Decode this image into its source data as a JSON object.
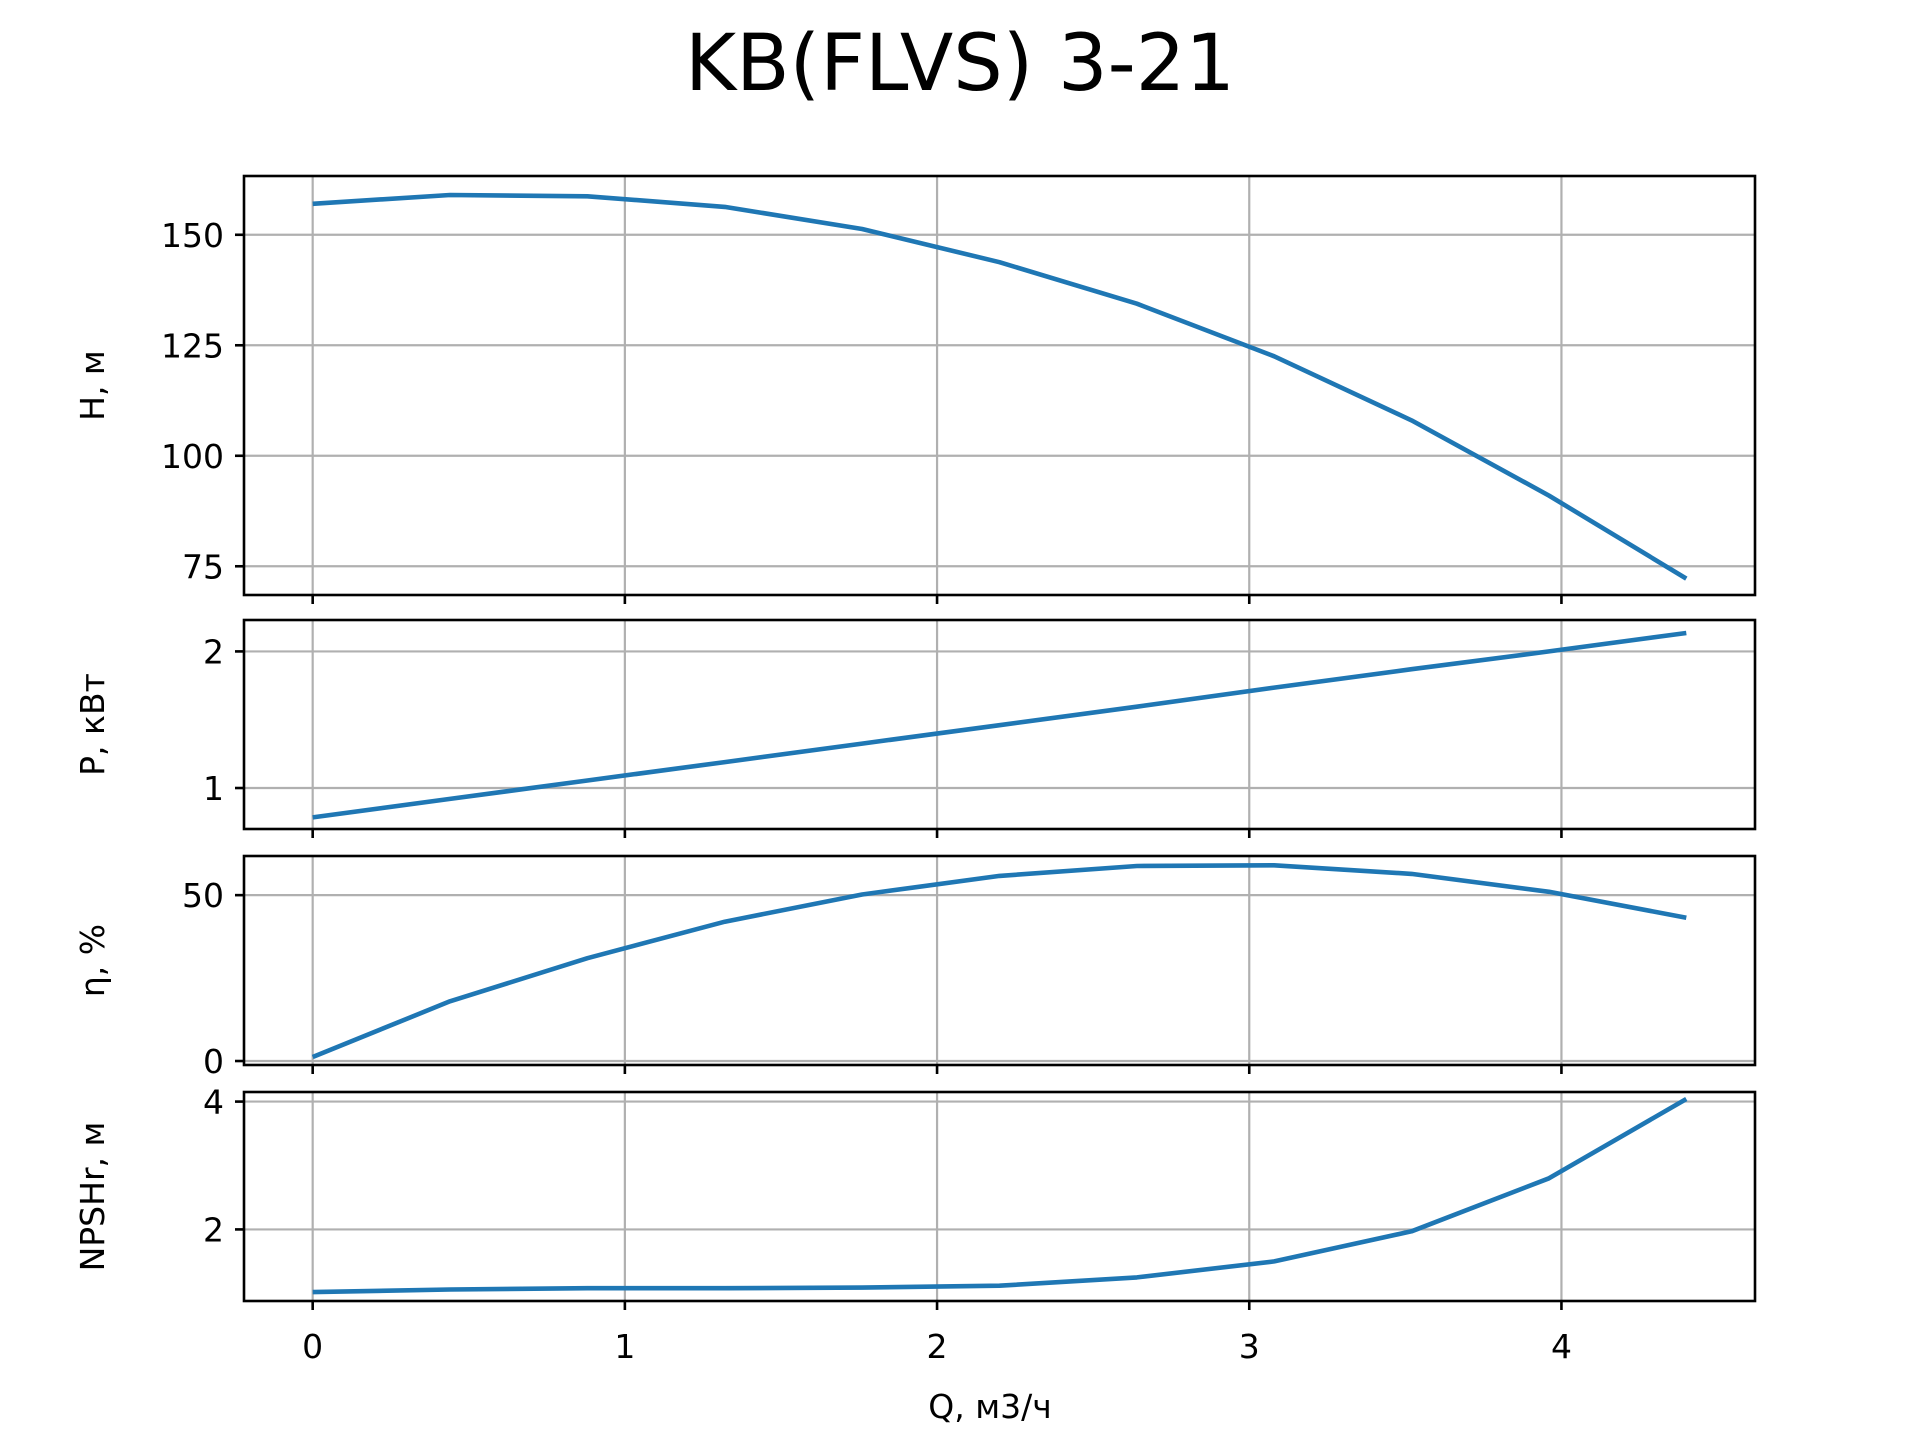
{
  "chart_data": {
    "type": "line",
    "title": "KB(FLVS) 3-21",
    "xlabel": "Q, м3/ч",
    "xlim": [
      -0.22,
      4.62
    ],
    "x_ticks": [
      0,
      1,
      2,
      3,
      4
    ],
    "x_tick_labels": [
      "0",
      "1",
      "2",
      "3",
      "4"
    ],
    "grid": true,
    "color": "#1f77b4",
    "subplots": [
      {
        "ylabel": "H, м",
        "ylim": [
          68.5,
          163.3
        ],
        "y_ticks": [
          75,
          100,
          125,
          150
        ],
        "y_tick_labels": [
          "75",
          "100",
          "125",
          "150"
        ],
        "x": [
          0,
          0.44,
          0.88,
          1.32,
          1.76,
          2.2,
          2.64,
          3.08,
          3.52,
          3.96,
          4.4
        ],
        "y": [
          157,
          159,
          158.7,
          156.3,
          151.3,
          143.8,
          134.4,
          122.5,
          108,
          91,
          72.2
        ]
      },
      {
        "ylabel": "P, кВт",
        "ylim": [
          0.7,
          2.23
        ],
        "y_ticks": [
          1,
          2
        ],
        "y_tick_labels": [
          "1",
          "2"
        ],
        "x": [
          0,
          0.44,
          0.88,
          1.32,
          1.76,
          2.2,
          2.64,
          3.08,
          3.52,
          3.96,
          4.4
        ],
        "y": [
          0.785,
          0.92,
          1.055,
          1.19,
          1.325,
          1.46,
          1.595,
          1.735,
          1.87,
          2.0,
          2.135
        ]
      },
      {
        "ylabel": "η, %",
        "ylim": [
          -1.2,
          61.8
        ],
        "y_ticks": [
          0,
          50
        ],
        "y_tick_labels": [
          "0",
          "50"
        ],
        "x": [
          0,
          0.44,
          0.88,
          1.32,
          1.76,
          2.2,
          2.64,
          3.08,
          3.52,
          3.96,
          4.4
        ],
        "y": [
          1.2,
          18,
          31,
          42,
          50.2,
          55.8,
          58.8,
          59,
          56.4,
          51,
          43.2
        ]
      },
      {
        "ylabel": "NPSHr, м",
        "ylim": [
          0.88,
          4.15
        ],
        "y_ticks": [
          2,
          4
        ],
        "y_tick_labels": [
          "2",
          "4"
        ],
        "x": [
          0,
          0.44,
          0.88,
          1.32,
          1.76,
          2.2,
          2.64,
          3.08,
          3.52,
          3.96,
          4.4
        ],
        "y": [
          1.02,
          1.06,
          1.08,
          1.08,
          1.09,
          1.12,
          1.25,
          1.5,
          1.97,
          2.8,
          4.04
        ]
      }
    ]
  }
}
